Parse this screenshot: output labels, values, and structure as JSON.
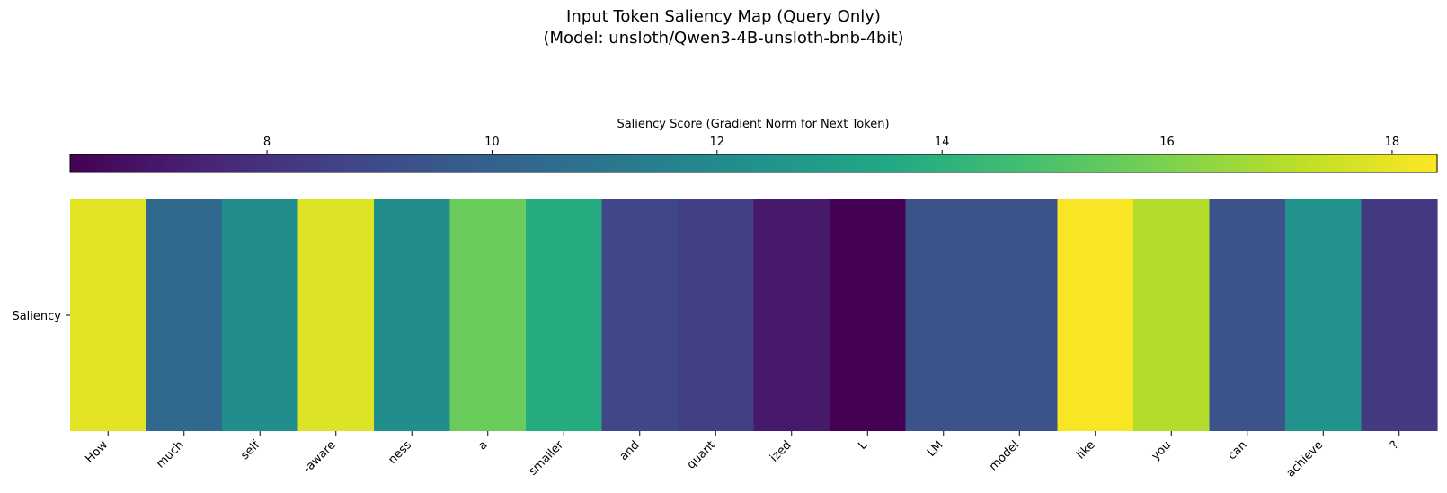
{
  "chart_data": {
    "type": "heatmap",
    "title_lines": [
      "Input Token Saliency Map (Query Only)",
      "(Model: unsloth/Qwen3-4B-unsloth-bnb-4bit)"
    ],
    "colorbar": {
      "label": "Saliency Score (Gradient Norm for Next Token)",
      "range": [
        6.25,
        18.4
      ],
      "ticks": [
        8,
        10,
        12,
        14,
        16,
        18
      ],
      "tick_labels": [
        "8",
        "10",
        "12",
        "14",
        "16",
        "18"
      ],
      "colormap": "viridis",
      "placement": "top"
    },
    "y_labels": [
      "Saliency"
    ],
    "x_labels": [
      "How",
      "much",
      "self",
      "-aware",
      "ness",
      "a",
      "smaller",
      "and",
      "quant",
      "ized",
      "L",
      "LM",
      "model",
      "like",
      "you",
      "can",
      "achieve",
      "?"
    ],
    "values": [
      [
        17.9,
        10.4,
        12.2,
        17.8,
        12.2,
        15.6,
        13.7,
        8.8,
        8.5,
        7.1,
        6.25,
        9.3,
        9.3,
        18.3,
        17.0,
        9.3,
        12.4,
        8.3
      ]
    ],
    "grid": false,
    "legend": "none"
  }
}
